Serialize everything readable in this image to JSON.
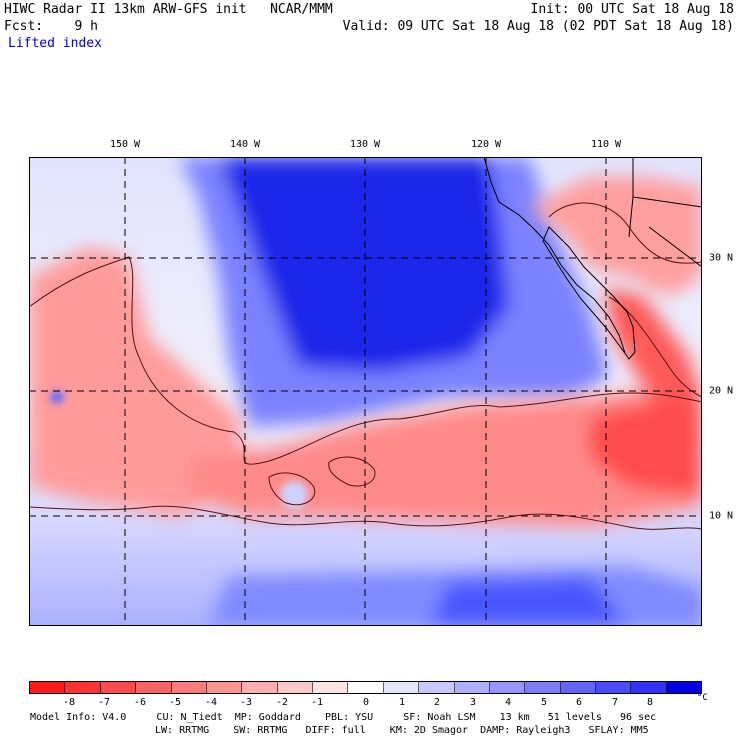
{
  "header": {
    "line1_left": "HIWC Radar II 13km ARW-GFS init   NCAR/MMM",
    "line1_right": "Init: 00 UTC Sat 18 Aug 18",
    "line2_left": "Fcst:    9 h",
    "line2_right": "Valid: 09 UTC Sat 18 Aug 18 (02 PDT Sat 18 Aug 18)",
    "field": "Lifted index"
  },
  "map": {
    "longitude_labels": [
      "150 W",
      "140 W",
      "130 W",
      "120 W",
      "110 W"
    ],
    "latitude_labels": [
      "30 N",
      "20 N",
      "10 N"
    ]
  },
  "colorbar": {
    "colors": [
      "#ff1a1a",
      "#ff3232",
      "#ff4b4b",
      "#ff6464",
      "#ff7d7d",
      "#ff9696",
      "#ffafaf",
      "#ffc8c8",
      "#ffe4e4",
      "#ffffff",
      "#e6e6ff",
      "#c8c8ff",
      "#afafff",
      "#9696ff",
      "#7d7dff",
      "#6464ff",
      "#4b4bff",
      "#3232ff",
      "#0000e6"
    ],
    "ticks": [
      "-8",
      "-7",
      "-6",
      "-5",
      "-4",
      "-3",
      "-2",
      "-1",
      "0",
      "1",
      "2",
      "3",
      "4",
      "5",
      "6",
      "7",
      "8"
    ],
    "unit": "°C"
  },
  "footer": {
    "line1": "Model Info: V4.0     CU: N_Tiedt  MP: Goddard    PBL: YSU     SF: Noah LSM    13 km   51 levels   96 sec",
    "line2": "LW: RRTMG    SW: RRTMG   DIFF: full    KM: 2D Smagor  DAMP: Rayleigh3   SFLAY: MM5"
  }
}
